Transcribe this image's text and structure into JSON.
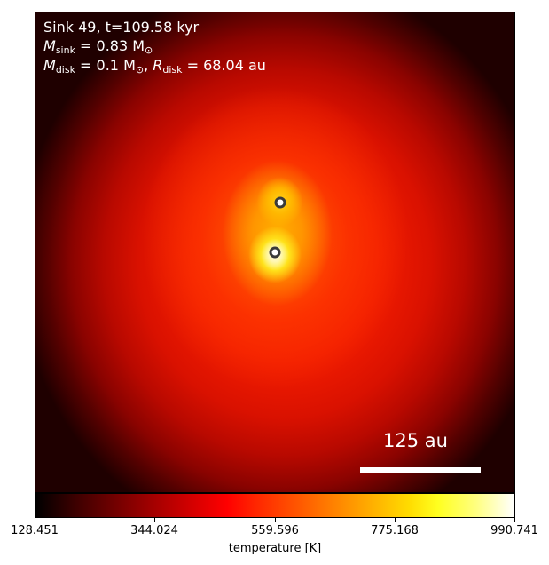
{
  "annotations": {
    "sink_line": "Sink 49, t=109.58 kyr",
    "mass_prefix": "M",
    "mass_sub": "sink",
    "mass_value": " = 0.83 M",
    "mass_unit_sub": "⊙",
    "disk_mass_prefix": "M",
    "disk_mass_sub": "disk",
    "disk_mass_value": " = 0.1 M",
    "disk_mass_unit_sub": "⊙",
    "disk_radius_sep": ", ",
    "disk_radius_prefix": "R",
    "disk_radius_sub": "disk",
    "disk_radius_value": " = 68.04 au"
  },
  "scale_bar": {
    "label": "125 au"
  },
  "colorbar": {
    "label": "temperature [K]",
    "ticks": [
      "128.451",
      "344.024",
      "559.596",
      "775.168",
      "990.741"
    ],
    "min": 128.451,
    "max": 990.741,
    "colormap": "hot"
  },
  "sink_markers": [
    {
      "name": "sink-upper",
      "color": "#333333"
    },
    {
      "name": "sink-lower",
      "color": "#333333"
    }
  ],
  "colors": {
    "text_on_map": "#ffffff",
    "marker_fill": "#ffffff",
    "marker_stroke": "#3a3a3a"
  }
}
